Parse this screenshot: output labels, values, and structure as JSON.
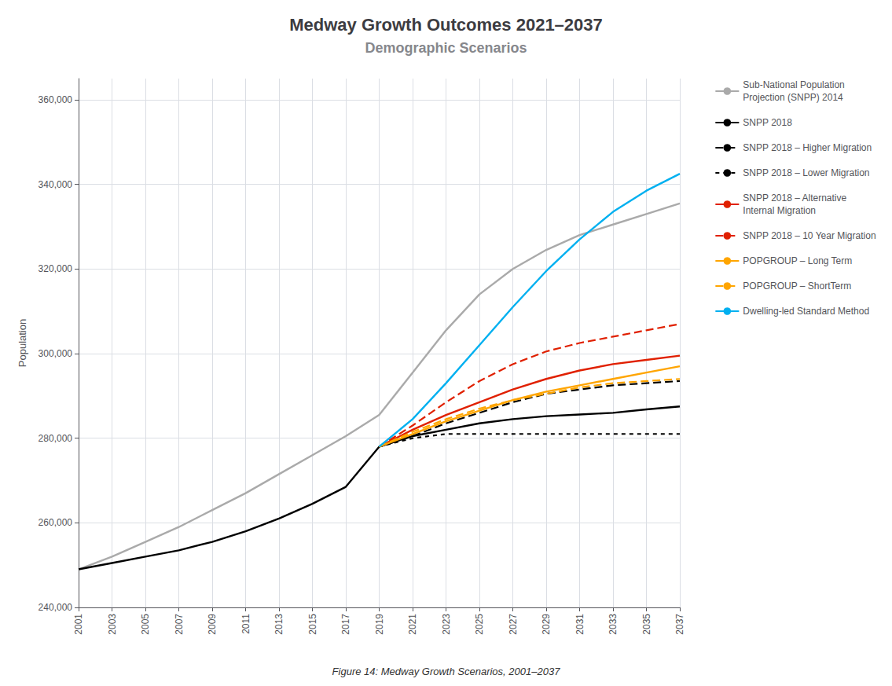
{
  "chart_data": {
    "type": "line",
    "title": "Medway Growth Outcomes 2021–2037",
    "subtitle": "Demographic Scenarios",
    "ylabel": "Population",
    "caption": "Figure 14: Medway Growth Scenarios, 2001–2037",
    "xlim": [
      2001,
      2037
    ],
    "xticks": [
      2001,
      2003,
      2005,
      2007,
      2009,
      2011,
      2013,
      2015,
      2017,
      2019,
      2021,
      2023,
      2025,
      2027,
      2029,
      2031,
      2033,
      2035,
      2037
    ],
    "ylim": [
      240000,
      365000
    ],
    "yticks": [
      {
        "value": 240000,
        "label": "240,000"
      },
      {
        "value": 260000,
        "label": "260,000"
      },
      {
        "value": 280000,
        "label": "280,000"
      },
      {
        "value": 300000,
        "label": "300,000"
      },
      {
        "value": 320000,
        "label": "320,000"
      },
      {
        "value": 340000,
        "label": "340,000"
      },
      {
        "value": 360000,
        "label": "360,000"
      }
    ],
    "grid": true,
    "legend": "right",
    "series": [
      {
        "name": "Sub-National Population\nProjection (SNPP) 2014",
        "color": "#aaaaaa",
        "line_style": "solid",
        "x": [
          2001,
          2003,
          2005,
          2007,
          2009,
          2011,
          2013,
          2015,
          2017,
          2019,
          2021,
          2023,
          2025,
          2027,
          2029,
          2031,
          2033,
          2035,
          2037
        ],
        "values": [
          249000,
          252000,
          255500,
          259000,
          263000,
          267000,
          271500,
          276000,
          280500,
          285500,
          295500,
          305500,
          314000,
          320000,
          324500,
          328000,
          330500,
          333000,
          335500
        ]
      },
      {
        "name": "SNPP 2018",
        "color": "#000000",
        "line_style": "solid",
        "x": [
          2001,
          2003,
          2005,
          2007,
          2009,
          2011,
          2013,
          2015,
          2017,
          2019,
          2021,
          2023,
          2025,
          2027,
          2029,
          2031,
          2033,
          2035,
          2037
        ],
        "values": [
          249000,
          250500,
          252000,
          253500,
          255500,
          258000,
          261000,
          264500,
          268500,
          278000,
          280500,
          282000,
          283500,
          284500,
          285200,
          285600,
          286000,
          286800,
          287500
        ]
      },
      {
        "name": "SNPP 2018 – Higher Migration",
        "color": "#000000",
        "line_style": "dashed",
        "x": [
          2019,
          2021,
          2023,
          2025,
          2027,
          2029,
          2031,
          2033,
          2035,
          2037
        ],
        "values": [
          278000,
          280500,
          283500,
          286000,
          288500,
          290500,
          291500,
          292500,
          293000,
          293500
        ]
      },
      {
        "name": "SNPP 2018 – Lower Migration",
        "color": "#000000",
        "line_style": "short_dashed",
        "x": [
          2019,
          2021,
          2023,
          2025,
          2027,
          2029,
          2031,
          2033,
          2035,
          2037
        ],
        "values": [
          278000,
          280000,
          281000,
          281000,
          281000,
          281000,
          281000,
          281000,
          281000,
          281000
        ]
      },
      {
        "name": "SNPP 2018 – Alternative\nInternal Migration",
        "color": "#e02000",
        "line_style": "solid",
        "x": [
          2019,
          2021,
          2023,
          2025,
          2027,
          2029,
          2031,
          2033,
          2035,
          2037
        ],
        "values": [
          278000,
          282000,
          285500,
          288500,
          291500,
          294000,
          296000,
          297500,
          298500,
          299500
        ]
      },
      {
        "name": "SNPP 2018 – 10 Year Migration",
        "color": "#e02000",
        "line_style": "dashed",
        "x": [
          2019,
          2021,
          2023,
          2025,
          2027,
          2029,
          2031,
          2033,
          2035,
          2037
        ],
        "values": [
          278000,
          283000,
          288500,
          293500,
          297500,
          300500,
          302500,
          304000,
          305500,
          307000
        ]
      },
      {
        "name": "POPGROUP – Long Term",
        "color": "#ffa500",
        "line_style": "solid",
        "x": [
          2019,
          2021,
          2023,
          2025,
          2027,
          2029,
          2031,
          2033,
          2035,
          2037
        ],
        "values": [
          278000,
          281000,
          284000,
          286500,
          289000,
          291000,
          292500,
          294000,
          295500,
          297000
        ]
      },
      {
        "name": "POPGROUP – ShortTerm",
        "color": "#ffa500",
        "line_style": "dashed",
        "x": [
          2019,
          2021,
          2023,
          2025,
          2027,
          2029,
          2031,
          2033,
          2035,
          2037
        ],
        "values": [
          278000,
          281500,
          284500,
          287000,
          289000,
          290500,
          292000,
          293000,
          293500,
          294000
        ]
      },
      {
        "name": "Dwelling-led Standard Method",
        "color": "#00b0f0",
        "line_style": "solid",
        "x": [
          2019,
          2021,
          2023,
          2025,
          2027,
          2029,
          2031,
          2033,
          2035,
          2037
        ],
        "values": [
          278000,
          284500,
          293000,
          302000,
          311000,
          319500,
          327000,
          333500,
          338500,
          342500
        ]
      }
    ]
  }
}
